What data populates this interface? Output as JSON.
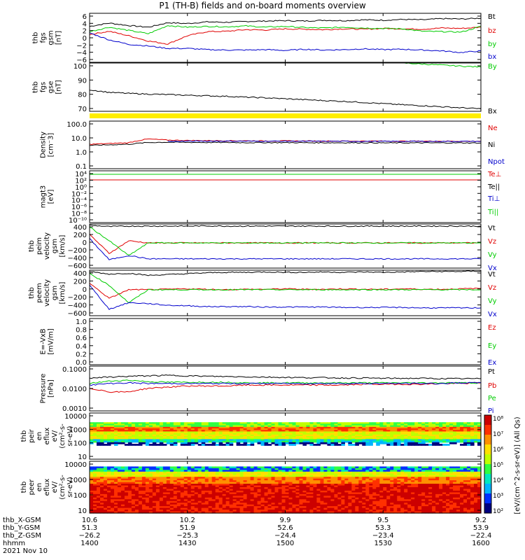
{
  "title": "P1 (TH-B) fields and on-board moments overview",
  "chart_data": [
    {
      "type": "line",
      "panel": "fgs_gsm",
      "ylabel_lines": [
        "thb",
        "fgs",
        "gsm",
        "[nT]"
      ],
      "yticks": [
        "6",
        "4",
        "2",
        "0",
        "−2",
        "−4",
        "−6"
      ],
      "ylim": [
        -6,
        6
      ],
      "series": [
        {
          "name": "Bt",
          "color": "#000000",
          "values": [
            2.8,
            3.6,
            3.0,
            2.6,
            3.7,
            3.5,
            3.9,
            3.8,
            4.0,
            4.1,
            4.2,
            4.1,
            4.3,
            4.2,
            4.4,
            4.3,
            4.5,
            4.4,
            4.7,
            4.6,
            4.8
          ]
        },
        {
          "name": "bz",
          "color": "#e00000",
          "values": [
            0.8,
            1.6,
            0.5,
            -0.8,
            -1.5,
            0.5,
            1.5,
            1.6,
            2.0,
            1.9,
            2.2,
            2.1,
            2.0,
            2.2,
            2.1,
            2.3,
            2.2,
            2.1,
            2.4,
            2.3,
            2.6
          ]
        },
        {
          "name": "by",
          "color": "#00cc00",
          "values": [
            1.5,
            2.6,
            1.8,
            1.0,
            3.0,
            2.6,
            2.8,
            2.7,
            2.9,
            2.6,
            2.8,
            2.5,
            2.4,
            2.6,
            2.4,
            2.3,
            2.2,
            1.6,
            1.5,
            1.4,
            2.8
          ]
        },
        {
          "name": "bx",
          "color": "#0000cc",
          "values": [
            1.2,
            -0.5,
            -1.6,
            -2.0,
            -2.6,
            -2.6,
            -2.9,
            -3.0,
            -3.0,
            -2.9,
            -3.1,
            -2.8,
            -3.0,
            -2.9,
            -2.7,
            -2.9,
            -2.8,
            -3.0,
            -3.2,
            -3.6,
            -3.2
          ]
        }
      ]
    },
    {
      "type": "line",
      "panel": "fgs_gse",
      "ylabel_lines": [
        "thb",
        "fgs",
        "gse",
        "[nT]"
      ],
      "yticks": [
        "100",
        "90",
        "80",
        "70"
      ],
      "ylim": [
        63,
        100
      ],
      "series": [
        {
          "name": "By",
          "color": "#00cc00",
          "values": [
            null,
            null,
            null,
            null,
            null,
            null,
            null,
            null,
            null,
            null,
            null,
            null,
            null,
            null,
            null,
            null,
            100,
            99.2,
            98.4,
            97.6,
            96.9
          ]
        },
        {
          "name": "Bx",
          "color": "#000000",
          "values": [
            79.5,
            77.5,
            76.7,
            76.2,
            75.8,
            75.3,
            74.9,
            74.5,
            73.8,
            73.3,
            72.6,
            71.9,
            71.2,
            70.6,
            69.8,
            68.9,
            68.0,
            67.3,
            66.5,
            65.7,
            64.9
          ]
        }
      ]
    },
    {
      "type": "line",
      "panel": "density",
      "ylabel_lines": [
        "Density",
        "[cm⁻3]"
      ],
      "yticks": [
        "100.0",
        "10.0",
        "1.0",
        "0.1"
      ],
      "scale": "log",
      "ylim": [
        0.02,
        300
      ],
      "series": [
        {
          "name": "Ne",
          "color": "#e00000",
          "values": [
            2.8,
            3.2,
            3.8,
            8.0,
            6.5,
            6.0,
            5.8,
            5.7,
            5.6,
            5.5,
            5.5,
            5.4,
            5.4,
            5.3,
            5.3,
            5.3,
            5.2,
            5.2,
            5.2,
            5.1,
            5.2
          ]
        },
        {
          "name": "Ni",
          "color": "#000000",
          "values": [
            2.2,
            2.5,
            2.8,
            4.0,
            4.2,
            4.1,
            4.0,
            4.0,
            3.9,
            3.9,
            3.9,
            3.8,
            3.8,
            3.8,
            3.8,
            3.7,
            3.7,
            3.7,
            3.7,
            3.7,
            3.6
          ]
        },
        {
          "name": "Npot",
          "color": "#0000cc",
          "values": [
            null,
            null,
            null,
            null,
            5.0,
            5.2,
            5.3,
            5.3,
            5.2,
            5.2,
            5.2,
            5.1,
            5.1,
            5.1,
            5.0,
            5.0,
            5.0,
            5.0,
            5.0,
            5.0,
            5.0
          ]
        }
      ]
    },
    {
      "type": "line",
      "panel": "moments_temperature",
      "ylabel_lines": [
        "magt3",
        "[eV]"
      ],
      "yticks": [
        "10⁴",
        "10²",
        "10⁰",
        "10⁻²",
        "10⁻⁴",
        "10⁻⁶",
        "10⁻⁸",
        "10⁻¹⁰"
      ],
      "scale": "log",
      "ylim": [
        1e-10,
        10000.0
      ],
      "series": [
        {
          "name": "Te⊥",
          "color": "#e00000",
          "values": []
        },
        {
          "name": "Te||",
          "color": "#000000",
          "values": []
        },
        {
          "name": "Ti⊥",
          "color": "#0000cc",
          "values": []
        },
        {
          "name": "Ti||",
          "color": "#00cc00",
          "values": []
        }
      ]
    },
    {
      "type": "line",
      "panel": "peim_velocity",
      "ylabel_lines": [
        "thb",
        "peim",
        "velocity",
        "gsm",
        "[km/s]"
      ],
      "yticks": [
        "400",
        "200",
        "0",
        "−200",
        "−400",
        "−600"
      ],
      "ylim": [
        -600,
        450
      ],
      "series": [
        {
          "name": "Vt",
          "color": "#000000",
          "values": [
            420,
            390,
            400,
            400,
            400,
            400,
            405,
            400,
            400,
            400,
            400,
            400,
            400,
            400,
            400,
            400,
            400,
            400,
            400,
            400,
            400
          ]
        },
        {
          "name": "Vz",
          "color": "#e00000",
          "values": [
            200,
            -250,
            50,
            0,
            0,
            0,
            0,
            0,
            0,
            0,
            0,
            0,
            0,
            0,
            0,
            0,
            0,
            0,
            0,
            0,
            0
          ]
        },
        {
          "name": "Vy",
          "color": "#00cc00",
          "values": [
            380,
            50,
            -300,
            0,
            0,
            0,
            0,
            0,
            0,
            0,
            0,
            0,
            0,
            0,
            0,
            0,
            0,
            0,
            0,
            0,
            0
          ]
        },
        {
          "name": "Vx",
          "color": "#0000cc",
          "values": [
            100,
            -400,
            -300,
            -380,
            -380,
            -380,
            -380,
            -380,
            -380,
            -380,
            -380,
            -380,
            -380,
            -380,
            -380,
            -380,
            -380,
            -380,
            -380,
            -380,
            -380
          ]
        }
      ]
    },
    {
      "type": "line",
      "panel": "peem_velocity",
      "ylabel_lines": [
        "thb",
        "peem",
        "velocity",
        "gsm",
        "[km/s]"
      ],
      "yticks": [
        "400",
        "200",
        "0",
        "−200",
        "−400",
        "−600"
      ],
      "ylim": [
        -600,
        450
      ],
      "series": [
        {
          "name": "Vt",
          "color": "#000000",
          "values": [
            420,
            360,
            380,
            330,
            350,
            370,
            390,
            400,
            400,
            410,
            400,
            400,
            410,
            400,
            410,
            400,
            410,
            420,
            420,
            420,
            430
          ]
        },
        {
          "name": "Vz",
          "color": "#e00000",
          "values": [
            150,
            -200,
            0,
            0,
            10,
            20,
            10,
            0,
            10,
            10,
            20,
            10,
            10,
            20,
            10,
            10,
            20,
            10,
            10,
            20,
            30
          ]
        },
        {
          "name": "Vy",
          "color": "#00cc00",
          "values": [
            380,
            100,
            -300,
            0,
            0,
            0,
            0,
            0,
            0,
            0,
            0,
            0,
            0,
            0,
            0,
            0,
            0,
            0,
            0,
            0,
            0
          ]
        },
        {
          "name": "Vx",
          "color": "#0000cc",
          "values": [
            100,
            -450,
            -300,
            -320,
            -360,
            -370,
            -390,
            -390,
            -390,
            -400,
            -400,
            -400,
            -400,
            -410,
            -410,
            -410,
            -410,
            -420,
            -420,
            -420,
            -420
          ]
        }
      ]
    },
    {
      "type": "line",
      "panel": "electric_field",
      "ylabel_lines": [
        "E=-VxB",
        "[mV/m]"
      ],
      "yticks": [
        "1.0",
        "0.8",
        "0.6",
        "0.4",
        "0.2",
        "0.0"
      ],
      "ylim": [
        0,
        1
      ],
      "series": [
        {
          "name": "Ez",
          "color": "#e00000",
          "values": []
        },
        {
          "name": "Ey",
          "color": "#00cc00",
          "values": []
        },
        {
          "name": "Ex",
          "color": "#0000cc",
          "values": []
        }
      ]
    },
    {
      "type": "line",
      "panel": "pressure",
      "ylabel_lines": [
        "Pressure",
        "[nPa]"
      ],
      "yticks": [
        "0.1000",
        "0.0100",
        "0.0010"
      ],
      "scale": "log",
      "ylim": [
        0.0002,
        0.12
      ],
      "series": [
        {
          "name": "Pt",
          "color": "#000000",
          "values": [
            0.022,
            0.025,
            0.028,
            0.03,
            0.032,
            0.03,
            0.028,
            0.027,
            0.026,
            0.025,
            0.024,
            0.023,
            0.023,
            0.022,
            0.022,
            0.021,
            0.021,
            0.021,
            0.02,
            0.02,
            0.02
          ]
        },
        {
          "name": "Pb",
          "color": "#e00000",
          "values": [
            0.005,
            0.003,
            0.003,
            0.005,
            0.006,
            0.007,
            0.007,
            0.007,
            0.008,
            0.008,
            0.008,
            0.008,
            0.008,
            0.008,
            0.009,
            0.009,
            0.009,
            0.009,
            0.01,
            0.01,
            0.011
          ]
        },
        {
          "name": "Pe",
          "color": "#00cc00",
          "values": [
            0.01,
            0.014,
            0.016,
            0.013,
            0.012,
            0.012,
            0.012,
            0.012,
            0.011,
            0.011,
            0.011,
            0.011,
            0.011,
            0.011,
            0.011,
            0.011,
            0.011,
            0.011,
            0.011,
            0.011,
            0.011
          ]
        },
        {
          "name": "Pi",
          "color": "#0000cc",
          "values": [
            0.008,
            0.01,
            0.011,
            0.01,
            0.01,
            0.01,
            0.01,
            0.01,
            0.01,
            0.01,
            0.01,
            0.01,
            0.01,
            0.01,
            0.01,
            0.01,
            0.01,
            0.01,
            0.01,
            0.011,
            0.011
          ]
        }
      ]
    },
    {
      "type": "heatmap",
      "panel": "peir_eflux",
      "ylabel_lines": [
        "thb",
        "peir",
        "en",
        "eflux",
        "eV/",
        "(cm²-s-",
        "sr-eV)"
      ],
      "yticks": [
        "10000",
        "1000",
        "100",
        "10"
      ],
      "scale": "log",
      "ylim": [
        5,
        30000
      ]
    },
    {
      "type": "heatmap",
      "panel": "peer_eflux",
      "ylabel_lines": [
        "thb",
        "peer",
        "en",
        "eflux",
        "eV/",
        "(cm²-s-",
        "sr-eV)"
      ],
      "yticks": [
        "10000",
        "1000",
        "100",
        "10"
      ],
      "scale": "log",
      "ylim": [
        5,
        30000
      ]
    }
  ],
  "colorbar": {
    "ticks": [
      "10⁸",
      "10⁷",
      "10⁶",
      "10⁵",
      "10⁴",
      "10³",
      "10²"
    ],
    "label": "[eV/(cm^2-s-sr-eV)] (All Qs)"
  },
  "xaxis": {
    "row_labels": [
      "thb_X-GSM",
      "thb_Y-GSM",
      "thb_Z-GSM",
      "hhmm"
    ],
    "date": "2021 Nov 10",
    "ticks": [
      {
        "x": "10.6",
        "y": "51.3",
        "z": "−26.2",
        "hhmm": "1400"
      },
      {
        "x": "10.2",
        "y": "51.9",
        "z": "−25.3",
        "hhmm": "1430"
      },
      {
        "x": "9.9",
        "y": "52.6",
        "z": "−24.4",
        "hhmm": "1500"
      },
      {
        "x": "9.5",
        "y": "53.3",
        "z": "−23.4",
        "hhmm": "1530"
      },
      {
        "x": "9.2",
        "y": "53.9",
        "z": "−22.4",
        "hhmm": "1600"
      }
    ]
  }
}
